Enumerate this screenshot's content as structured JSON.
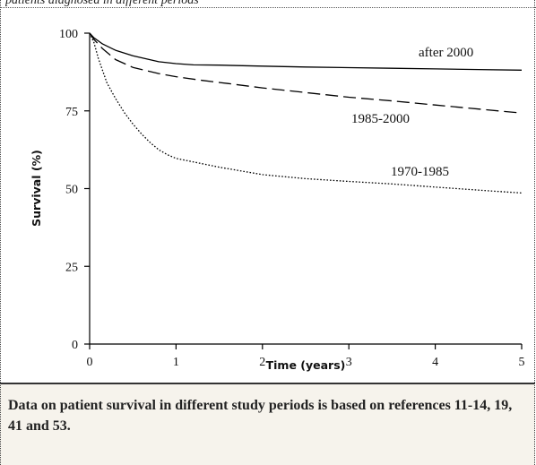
{
  "header": {
    "partial_text": "patients diagnosed in different periods"
  },
  "chart_data": {
    "type": "line",
    "title": "",
    "xlabel": "Time (years)",
    "ylabel": "Survival (%)",
    "xlim": [
      0,
      5
    ],
    "ylim": [
      0,
      100
    ],
    "xticks": [
      0,
      1,
      2,
      3,
      4,
      5
    ],
    "yticks": [
      0,
      25,
      50,
      75,
      100
    ],
    "xtick_labels": [
      "0",
      "1",
      "2",
      "3",
      "4",
      "5"
    ],
    "ytick_labels": [
      "0",
      "25",
      "50",
      "75",
      "100"
    ],
    "grid": false,
    "series": [
      {
        "name": "after 2000",
        "line_style": "solid",
        "x": [
          0,
          0.05,
          0.15,
          0.3,
          0.5,
          0.8,
          1.0,
          1.2,
          1.5,
          2,
          2.5,
          3,
          3.5,
          4,
          4.5,
          5
        ],
        "y": [
          100,
          98.5,
          96.5,
          94.5,
          92.7,
          90.8,
          90.2,
          89.8,
          89.7,
          89.4,
          89.1,
          88.9,
          88.7,
          88.5,
          88.3,
          88.1
        ]
      },
      {
        "name": "1985-2000",
        "line_style": "dashed",
        "x": [
          0,
          0.05,
          0.15,
          0.3,
          0.5,
          0.8,
          1.0,
          1.3,
          1.6,
          2,
          2.5,
          3,
          3.5,
          4,
          4.5,
          5
        ],
        "y": [
          100,
          98,
          95,
          91.5,
          89,
          87,
          86,
          84.8,
          83.8,
          82.4,
          80.9,
          79.4,
          78.2,
          76.9,
          75.6,
          74.3
        ]
      },
      {
        "name": "1970-1985",
        "line_style": "dotted",
        "x": [
          0,
          0.05,
          0.1,
          0.2,
          0.3,
          0.4,
          0.5,
          0.6,
          0.7,
          0.8,
          0.9,
          1.0,
          1.2,
          1.5,
          2,
          2.5,
          3,
          3.5,
          4,
          4.5,
          5
        ],
        "y": [
          100,
          97,
          92,
          84,
          79,
          74.5,
          70.8,
          67.6,
          64.8,
          62.5,
          60.9,
          59.7,
          58.6,
          56.9,
          54.5,
          53.2,
          52.3,
          51.5,
          50.5,
          49.5,
          48.6
        ]
      }
    ],
    "series_labels_text": [
      "after 2000",
      "1985-2000",
      "1970-1985"
    ]
  },
  "caption": {
    "text": "Data on patient survival in different study periods is based on references 11-14, 19, 41 and 53."
  }
}
